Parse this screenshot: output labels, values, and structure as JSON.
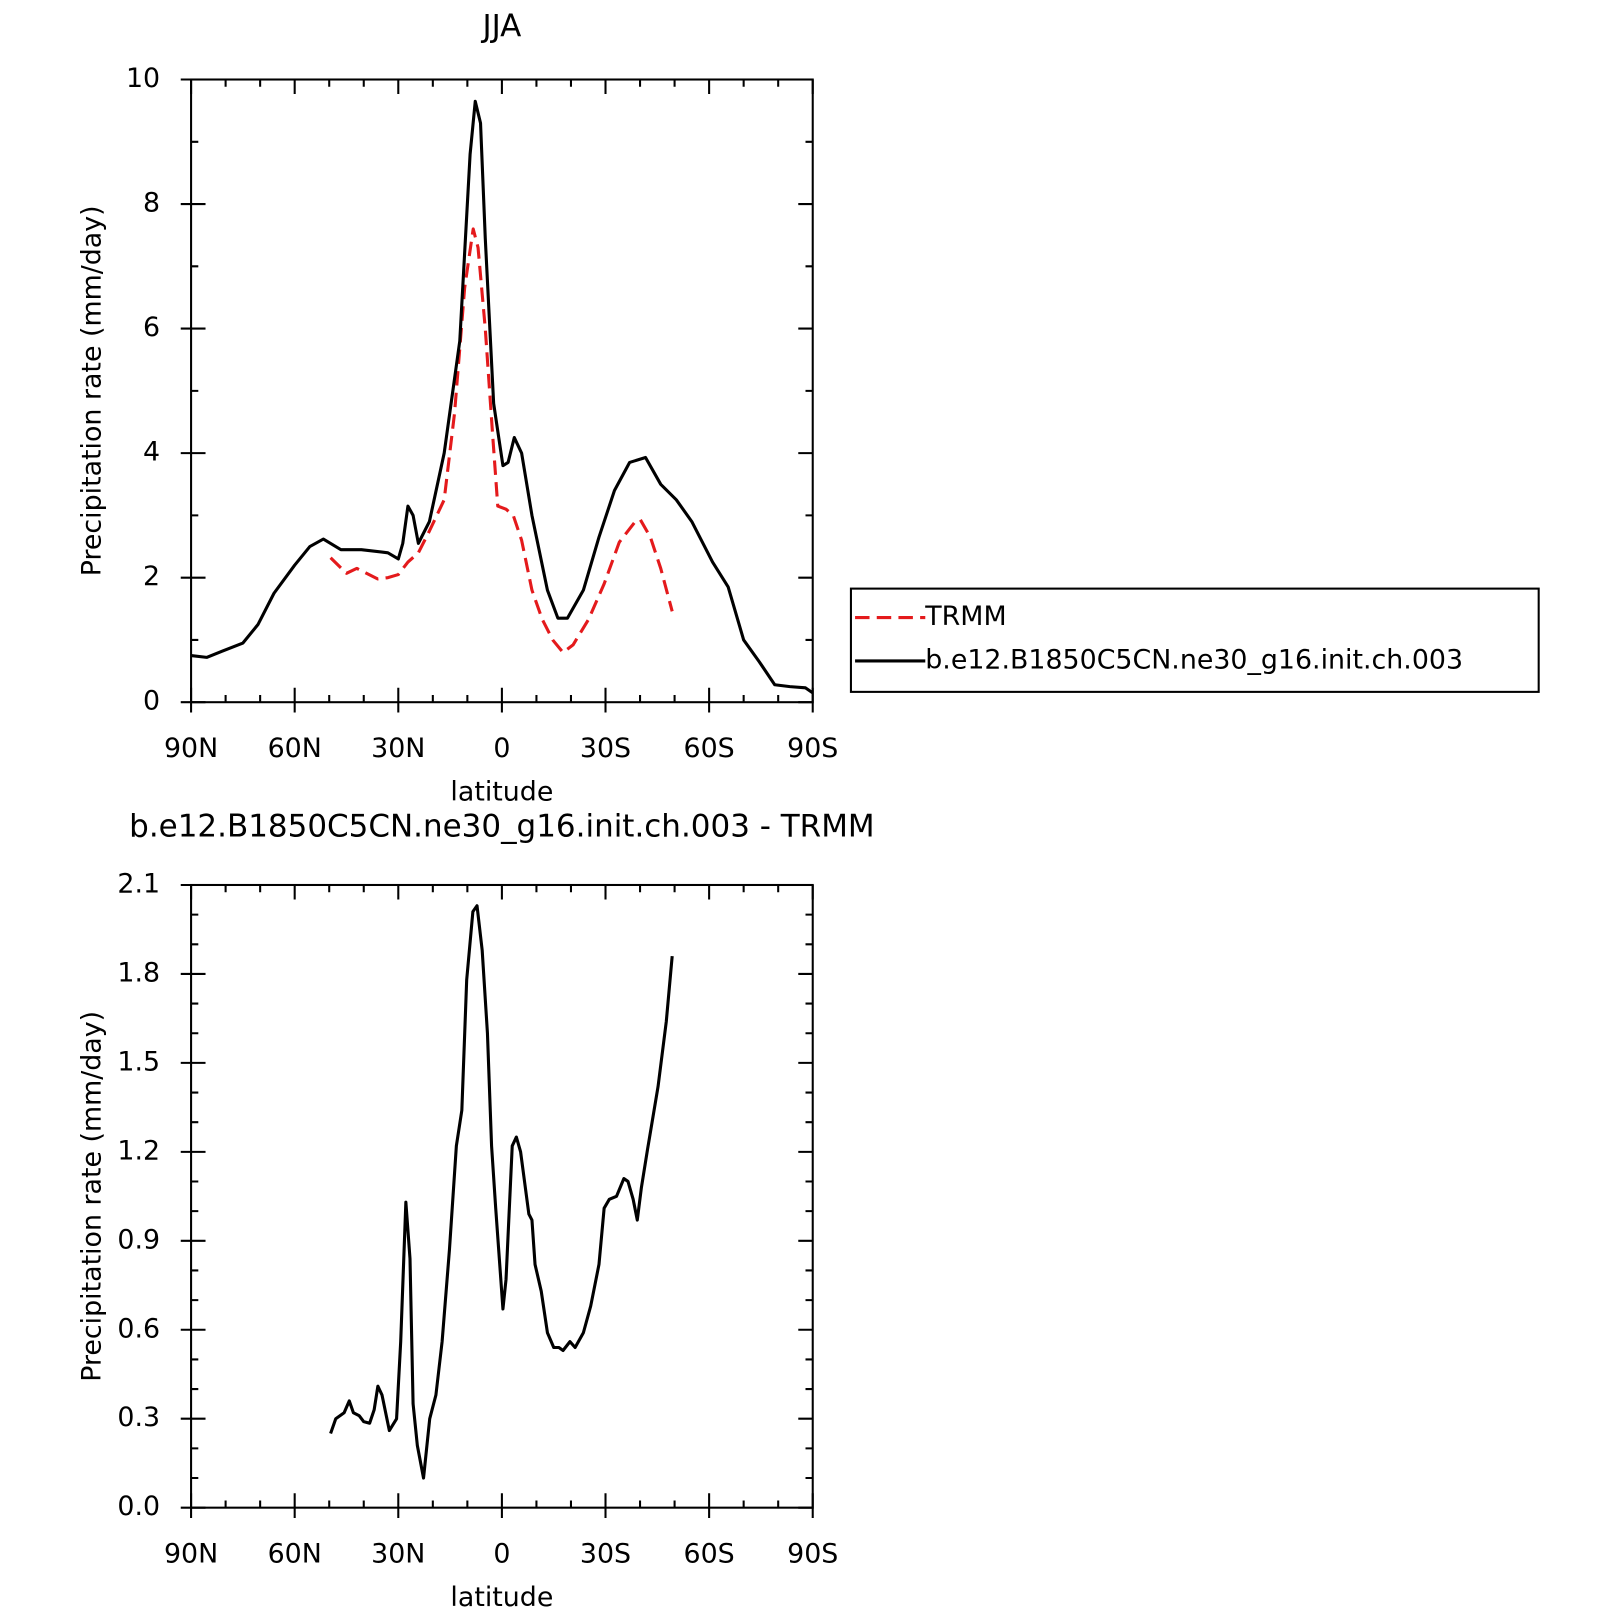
{
  "chart_data": [
    {
      "type": "line",
      "title": "JJA",
      "x_label": "latitude",
      "y_label": "Precipitation rate (mm/day)",
      "xlim": [
        90,
        -90
      ],
      "xticks": [
        {
          "value": 90,
          "label": "90N"
        },
        {
          "value": 60,
          "label": "60N"
        },
        {
          "value": 30,
          "label": "30N"
        },
        0,
        {
          "value": -30,
          "label": "30S"
        },
        {
          "value": -60,
          "label": "60S"
        },
        {
          "value": -90,
          "label": "90S"
        }
      ],
      "xminorticks": [
        80,
        70,
        50,
        40,
        20,
        10,
        -10,
        -20,
        -40,
        -50,
        -70,
        -80
      ],
      "ylim": [
        0,
        10
      ],
      "yticks": [
        0,
        2,
        4,
        6,
        8,
        10
      ],
      "yminorticks": [
        1,
        3,
        5,
        7,
        9
      ],
      "legend": "right",
      "series": [
        {
          "name": "TRMM",
          "color": "#e41a1c",
          "line_style": "dashed",
          "x": [
            49.6,
            45,
            42,
            36,
            33,
            30,
            27.2,
            24.2,
            21,
            16.7,
            13.7,
            10.8,
            8.3,
            6.9,
            4.8,
            2.7,
            1.2,
            -1.2,
            -3.3,
            -5.7,
            -8.7,
            -11.7,
            -14.7,
            -17.7,
            -20.6,
            -25.1,
            -29.6,
            -34,
            -38.6,
            -40.1,
            -43,
            -46,
            -49.3
          ],
          "values": [
            2.32,
            2.07,
            2.15,
            1.98,
            2.0,
            2.05,
            2.25,
            2.4,
            2.75,
            3.25,
            4.65,
            6.65,
            7.6,
            7.3,
            6.0,
            4.3,
            3.15,
            3.1,
            3.0,
            2.6,
            1.8,
            1.33,
            1.0,
            0.8,
            0.92,
            1.33,
            1.9,
            2.57,
            2.9,
            2.93,
            2.65,
            2.15,
            1.46
          ]
        },
        {
          "name": "b.e12.B1850C5CN.ne30_g16.init.ch.003",
          "color": "#000000",
          "line_style": "solid",
          "x": [
            90,
            85.5,
            81,
            75,
            70.6,
            66,
            60,
            55.6,
            51.7,
            46.6,
            40.7,
            33,
            30,
            28.7,
            27.2,
            25.7,
            24.2,
            21,
            16.7,
            12.2,
            9.2,
            7.7,
            6.2,
            4.8,
            2.4,
            -0.3,
            -1.8,
            -3.6,
            -5.7,
            -8.7,
            -13.2,
            -16.2,
            -19,
            -23.6,
            -28.1,
            -32.6,
            -37,
            -41.6,
            -46,
            -50.5,
            -55,
            -61,
            -65.5,
            -70,
            -74.5,
            -79,
            -83.4,
            -87.9,
            -90
          ],
          "values": [
            0.75,
            0.72,
            0.82,
            0.95,
            1.25,
            1.75,
            2.2,
            2.5,
            2.62,
            2.45,
            2.45,
            2.4,
            2.3,
            2.55,
            3.15,
            3.0,
            2.55,
            2.9,
            4.0,
            5.8,
            8.8,
            9.65,
            9.3,
            7.45,
            4.8,
            3.8,
            3.85,
            4.25,
            4.0,
            3.0,
            1.8,
            1.35,
            1.35,
            1.8,
            2.65,
            3.4,
            3.85,
            3.93,
            3.5,
            3.25,
            2.9,
            2.25,
            1.85,
            1.0,
            0.65,
            0.28,
            0.25,
            0.23,
            0.15
          ]
        }
      ]
    },
    {
      "type": "line",
      "title": "b.e12.B1850C5CN.ne30_g16.init.ch.003 - TRMM",
      "x_label": "latitude",
      "y_label": "Precipitation rate (mm/day)",
      "xlim": [
        90,
        -90
      ],
      "xticks": [
        {
          "value": 90,
          "label": "90N"
        },
        {
          "value": 60,
          "label": "60N"
        },
        {
          "value": 30,
          "label": "30N"
        },
        0,
        {
          "value": -30,
          "label": "30S"
        },
        {
          "value": -60,
          "label": "60S"
        },
        {
          "value": -90,
          "label": "90S"
        }
      ],
      "xminorticks": [
        80,
        70,
        50,
        40,
        20,
        10,
        -10,
        -20,
        -40,
        -50,
        -70,
        -80
      ],
      "ylim": [
        0,
        2.1
      ],
      "yticks": [
        {
          "value": 0,
          "label": "0.0"
        },
        0.3,
        0.6,
        0.9,
        1.2,
        1.5,
        1.8,
        2.1
      ],
      "yminorticks": [
        0.1,
        0.2,
        0.4,
        0.5,
        0.7,
        0.8,
        1.0,
        1.1,
        1.3,
        1.4,
        1.6,
        1.7,
        1.9,
        2.0
      ],
      "series": [
        {
          "color": "#000000",
          "line_style": "solid",
          "x": [
            49.6,
            48.1,
            45.7,
            44.2,
            43,
            41.3,
            40,
            38.3,
            37,
            35.9,
            34.7,
            32.6,
            30.5,
            29.3,
            27.8,
            26.6,
            25.7,
            24.5,
            22.7,
            20.9,
            19.1,
            17.3,
            15.2,
            13.2,
            11.6,
            10.2,
            8.4,
            7.2,
            5.7,
            4.2,
            3.0,
            1.8,
            -0.3,
            -1.2,
            -3,
            -4.2,
            -5.4,
            -7.8,
            -8.7,
            -9.6,
            -11.4,
            -13.2,
            -15,
            -16.5,
            -17.7,
            -19.7,
            -21.2,
            -23.6,
            -25.7,
            -28.1,
            -29.6,
            -31.1,
            -33.2,
            -35.3,
            -36.5,
            -38,
            -39.2,
            -40.4,
            -42.2,
            -45.2,
            -47.6,
            -49.3
          ],
          "values": [
            0.25,
            0.3,
            0.32,
            0.36,
            0.32,
            0.31,
            0.29,
            0.285,
            0.33,
            0.41,
            0.38,
            0.26,
            0.3,
            0.56,
            1.03,
            0.84,
            0.35,
            0.21,
            0.1,
            0.3,
            0.38,
            0.56,
            0.87,
            1.22,
            1.34,
            1.78,
            2.01,
            2.03,
            1.88,
            1.6,
            1.22,
            1.01,
            0.67,
            0.77,
            1.22,
            1.25,
            1.2,
            0.99,
            0.97,
            0.82,
            0.73,
            0.59,
            0.54,
            0.54,
            0.53,
            0.56,
            0.54,
            0.59,
            0.68,
            0.82,
            1.01,
            1.04,
            1.05,
            1.11,
            1.1,
            1.04,
            0.97,
            1.08,
            1.21,
            1.42,
            1.64,
            1.86
          ]
        }
      ]
    }
  ]
}
